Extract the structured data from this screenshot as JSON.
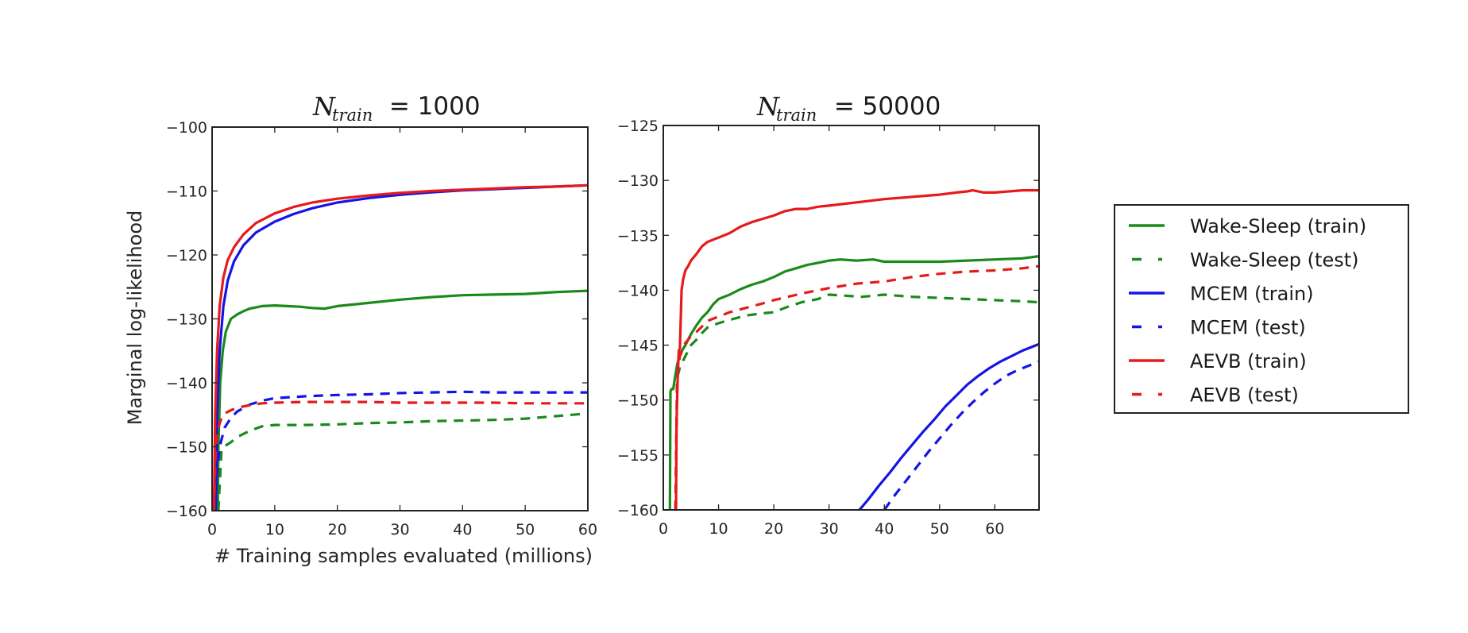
{
  "chart_data": [
    {
      "type": "line",
      "title": "N_train = 1000",
      "title_parts": {
        "symbol": "N",
        "subscript": "train",
        "rest": " = 1000"
      },
      "xlabel": "# Training samples evaluated (millions)",
      "ylabel": "Marginal log-likelihood",
      "xlim": [
        0,
        60
      ],
      "ylim": [
        -160,
        -100
      ],
      "xticks": [
        0,
        10,
        20,
        30,
        40,
        50,
        60
      ],
      "yticks": [
        -160,
        -150,
        -140,
        -130,
        -120,
        -110,
        -100
      ],
      "xtick_labels": [
        "0",
        "10",
        "20",
        "30",
        "40",
        "50",
        "60"
      ],
      "ytick_labels": [
        "−160",
        "−150",
        "−140",
        "−130",
        "−120",
        "−110",
        "−100"
      ],
      "grid": false,
      "series": [
        {
          "name": "Wake-Sleep (train)",
          "color": "#1a8a1a",
          "style": "solid",
          "x": [
            0.9,
            1.0,
            1.3,
            1.7,
            2.2,
            3,
            4,
            5,
            6,
            8,
            10,
            12,
            14,
            16,
            18,
            20,
            25,
            30,
            35,
            40,
            45,
            50,
            55,
            60
          ],
          "y": [
            -160,
            -150,
            -140,
            -135,
            -132,
            -130,
            -129.3,
            -128.8,
            -128.4,
            -128.0,
            -127.9,
            -128.0,
            -128.1,
            -128.3,
            -128.4,
            -128.0,
            -127.5,
            -127.0,
            -126.6,
            -126.3,
            -126.2,
            -126.1,
            -125.8,
            -125.6
          ]
        },
        {
          "name": "Wake-Sleep (test)",
          "color": "#1a8a1a",
          "style": "dashed",
          "x": [
            1.0,
            1.5,
            2.2,
            3,
            4,
            6,
            8,
            10,
            15,
            20,
            25,
            30,
            35,
            40,
            45,
            50,
            55,
            60
          ],
          "y": [
            -160,
            -150.5,
            -149.8,
            -149.3,
            -148.5,
            -147.5,
            -146.8,
            -146.6,
            -146.6,
            -146.5,
            -146.3,
            -146.2,
            -146.0,
            -145.9,
            -145.8,
            -145.6,
            -145.2,
            -144.8
          ]
        },
        {
          "name": "MCEM (train)",
          "color": "#1414e6",
          "style": "solid",
          "x": [
            0.6,
            0.8,
            1.2,
            1.8,
            2.5,
            3.5,
            5,
            7,
            10,
            13,
            16,
            20,
            25,
            30,
            35,
            40,
            45,
            50,
            55,
            60
          ],
          "y": [
            -160,
            -145,
            -135,
            -128,
            -124,
            -121,
            -118.5,
            -116.5,
            -114.8,
            -113.6,
            -112.7,
            -111.8,
            -111.1,
            -110.6,
            -110.2,
            -109.9,
            -109.7,
            -109.5,
            -109.3,
            -109.1
          ]
        },
        {
          "name": "MCEM (test)",
          "color": "#1414e6",
          "style": "dashed",
          "x": [
            0.5,
            0.8,
            1.2,
            2.0,
            3,
            4,
            6,
            8,
            10,
            15,
            20,
            25,
            30,
            35,
            40,
            45,
            50,
            55,
            60
          ],
          "y": [
            -160,
            -154,
            -150,
            -147,
            -145.5,
            -144.5,
            -143.4,
            -142.8,
            -142.4,
            -142.1,
            -141.9,
            -141.8,
            -141.6,
            -141.5,
            -141.4,
            -141.5,
            -141.5,
            -141.5,
            -141.5
          ]
        },
        {
          "name": "AEVB (train)",
          "color": "#e61a1a",
          "style": "solid",
          "x": [
            0.3,
            0.5,
            0.8,
            1.2,
            1.8,
            2.5,
            3.5,
            5,
            7,
            10,
            13,
            16,
            20,
            25,
            30,
            35,
            40,
            45,
            50,
            55,
            60
          ],
          "y": [
            -160,
            -145,
            -135,
            -128,
            -123.5,
            -120.8,
            -118.8,
            -116.8,
            -115.0,
            -113.5,
            -112.5,
            -111.8,
            -111.2,
            -110.7,
            -110.3,
            -110.0,
            -109.8,
            -109.6,
            -109.4,
            -109.3,
            -109.1
          ]
        },
        {
          "name": "AEVB (test)",
          "color": "#e61a1a",
          "style": "dashed",
          "x": [
            0.3,
            0.6,
            1.0,
            1.5,
            2.0,
            3,
            4,
            6,
            8,
            10,
            15,
            20,
            25,
            30,
            35,
            40,
            45,
            50,
            55,
            60
          ],
          "y": [
            -160,
            -150,
            -147,
            -145.5,
            -144.8,
            -144.3,
            -143.9,
            -143.5,
            -143.2,
            -143.1,
            -143.0,
            -143.0,
            -143.0,
            -143.1,
            -143.1,
            -143.1,
            -143.1,
            -143.2,
            -143.2,
            -143.2
          ]
        }
      ]
    },
    {
      "type": "line",
      "title": "N_train = 50000",
      "title_parts": {
        "symbol": "N",
        "subscript": "train",
        "rest": " = 50000"
      },
      "xlabel": "",
      "ylabel": "",
      "xlim": [
        0,
        68
      ],
      "ylim": [
        -160,
        -125
      ],
      "xticks": [
        0,
        10,
        20,
        30,
        40,
        50,
        60
      ],
      "yticks": [
        -160,
        -155,
        -150,
        -145,
        -140,
        -135,
        -130,
        -125
      ],
      "xtick_labels": [
        "0",
        "10",
        "20",
        "30",
        "40",
        "50",
        "60"
      ],
      "ytick_labels": [
        "−160",
        "−155",
        "−150",
        "−145",
        "−140",
        "−135",
        "−130",
        "−125"
      ],
      "grid": false,
      "series": [
        {
          "name": "Wake-Sleep (train)",
          "color": "#1a8a1a",
          "style": "solid",
          "x": [
            1.2,
            1.3,
            1.5,
            1.8,
            2.1,
            2.5,
            3,
            4,
            5,
            6,
            7,
            8,
            9,
            10,
            12,
            14,
            16,
            18,
            20,
            22,
            24,
            26,
            28,
            30,
            32,
            35,
            38,
            40,
            45,
            50,
            55,
            60,
            65,
            68
          ],
          "y": [
            -160,
            -149.2,
            -149.0,
            -149.0,
            -148.0,
            -146.8,
            -145.8,
            -145.0,
            -144.0,
            -143.2,
            -142.5,
            -142.0,
            -141.3,
            -140.8,
            -140.4,
            -139.9,
            -139.5,
            -139.2,
            -138.8,
            -138.3,
            -138.0,
            -137.7,
            -137.5,
            -137.3,
            -137.2,
            -137.3,
            -137.2,
            -137.4,
            -137.4,
            -137.4,
            -137.3,
            -137.2,
            -137.1,
            -136.9
          ]
        },
        {
          "name": "Wake-Sleep (test)",
          "color": "#1a8a1a",
          "style": "dashed",
          "x": [
            2.2,
            2.5,
            3,
            4,
            5,
            6,
            7,
            8,
            10,
            12,
            15,
            18,
            20,
            22,
            25,
            28,
            30,
            33,
            36,
            40,
            45,
            50,
            55,
            60,
            65,
            68
          ],
          "y": [
            -160,
            -148,
            -147,
            -146,
            -145,
            -144.5,
            -143.9,
            -143.4,
            -143.0,
            -142.7,
            -142.3,
            -142.1,
            -142.0,
            -141.6,
            -141.1,
            -140.8,
            -140.4,
            -140.5,
            -140.6,
            -140.4,
            -140.6,
            -140.7,
            -140.8,
            -140.9,
            -141.0,
            -141.1
          ]
        },
        {
          "name": "MCEM (train)",
          "color": "#1414e6",
          "style": "solid",
          "x": [
            35.5,
            37,
            39,
            41,
            43,
            45,
            47,
            49,
            51,
            53,
            55,
            57,
            59,
            61,
            63,
            65,
            67,
            68
          ],
          "y": [
            -160,
            -159.1,
            -157.8,
            -156.6,
            -155.3,
            -154.1,
            -152.9,
            -151.8,
            -150.6,
            -149.6,
            -148.6,
            -147.8,
            -147.1,
            -146.5,
            -146.0,
            -145.5,
            -145.1,
            -144.9
          ]
        },
        {
          "name": "MCEM (test)",
          "color": "#1414e6",
          "style": "dashed",
          "x": [
            40.0,
            42,
            44,
            46,
            48,
            50,
            52,
            54,
            56,
            58,
            60,
            62,
            64,
            66,
            68
          ],
          "y": [
            -160,
            -158.6,
            -157.3,
            -156.0,
            -154.7,
            -153.5,
            -152.3,
            -151.2,
            -150.2,
            -149.3,
            -148.5,
            -147.8,
            -147.3,
            -146.9,
            -146.5
          ]
        },
        {
          "name": "AEVB (train)",
          "color": "#e61a1a",
          "style": "solid",
          "x": [
            2.3,
            2.4,
            2.6,
            2.8,
            3.0,
            3.3,
            3.6,
            4,
            4.5,
            5,
            6,
            7,
            8,
            9,
            10,
            12,
            14,
            16,
            18,
            20,
            22,
            24,
            26,
            28,
            30,
            35,
            40,
            45,
            50,
            53,
            55,
            56,
            58,
            60,
            65,
            68
          ],
          "y": [
            -160,
            -152,
            -148,
            -145.5,
            -145.3,
            -140,
            -139.0,
            -138.2,
            -137.8,
            -137.3,
            -136.7,
            -136.0,
            -135.6,
            -135.4,
            -135.2,
            -134.8,
            -134.2,
            -133.8,
            -133.5,
            -133.2,
            -132.8,
            -132.6,
            -132.6,
            -132.4,
            -132.3,
            -132.0,
            -131.7,
            -131.5,
            -131.3,
            -131.1,
            -131.0,
            -130.9,
            -131.1,
            -131.1,
            -130.9,
            -130.9
          ]
        },
        {
          "name": "AEVB (test)",
          "color": "#e61a1a",
          "style": "dashed",
          "x": [
            2.2,
            2.5,
            3,
            4,
            5,
            6,
            7,
            8,
            10,
            12,
            15,
            18,
            20,
            25,
            30,
            35,
            40,
            45,
            50,
            55,
            60,
            65,
            68
          ],
          "y": [
            -160,
            -148,
            -146,
            -144.8,
            -144.2,
            -143.8,
            -143.3,
            -142.8,
            -142.4,
            -142.0,
            -141.6,
            -141.2,
            -140.9,
            -140.3,
            -139.8,
            -139.4,
            -139.2,
            -138.8,
            -138.5,
            -138.3,
            -138.2,
            -138.0,
            -137.8
          ]
        }
      ]
    }
  ],
  "legend": {
    "placement": "right",
    "entries": [
      {
        "label": "Wake-Sleep (train)",
        "color": "#1a8a1a",
        "style": "solid"
      },
      {
        "label": "Wake-Sleep (test)",
        "color": "#1a8a1a",
        "style": "dashed"
      },
      {
        "label": "MCEM (train)",
        "color": "#1414e6",
        "style": "solid"
      },
      {
        "label": "MCEM (test)",
        "color": "#1414e6",
        "style": "dashed"
      },
      {
        "label": "AEVB (train)",
        "color": "#e61a1a",
        "style": "solid"
      },
      {
        "label": "AEVB (test)",
        "color": "#e61a1a",
        "style": "dashed"
      }
    ]
  }
}
